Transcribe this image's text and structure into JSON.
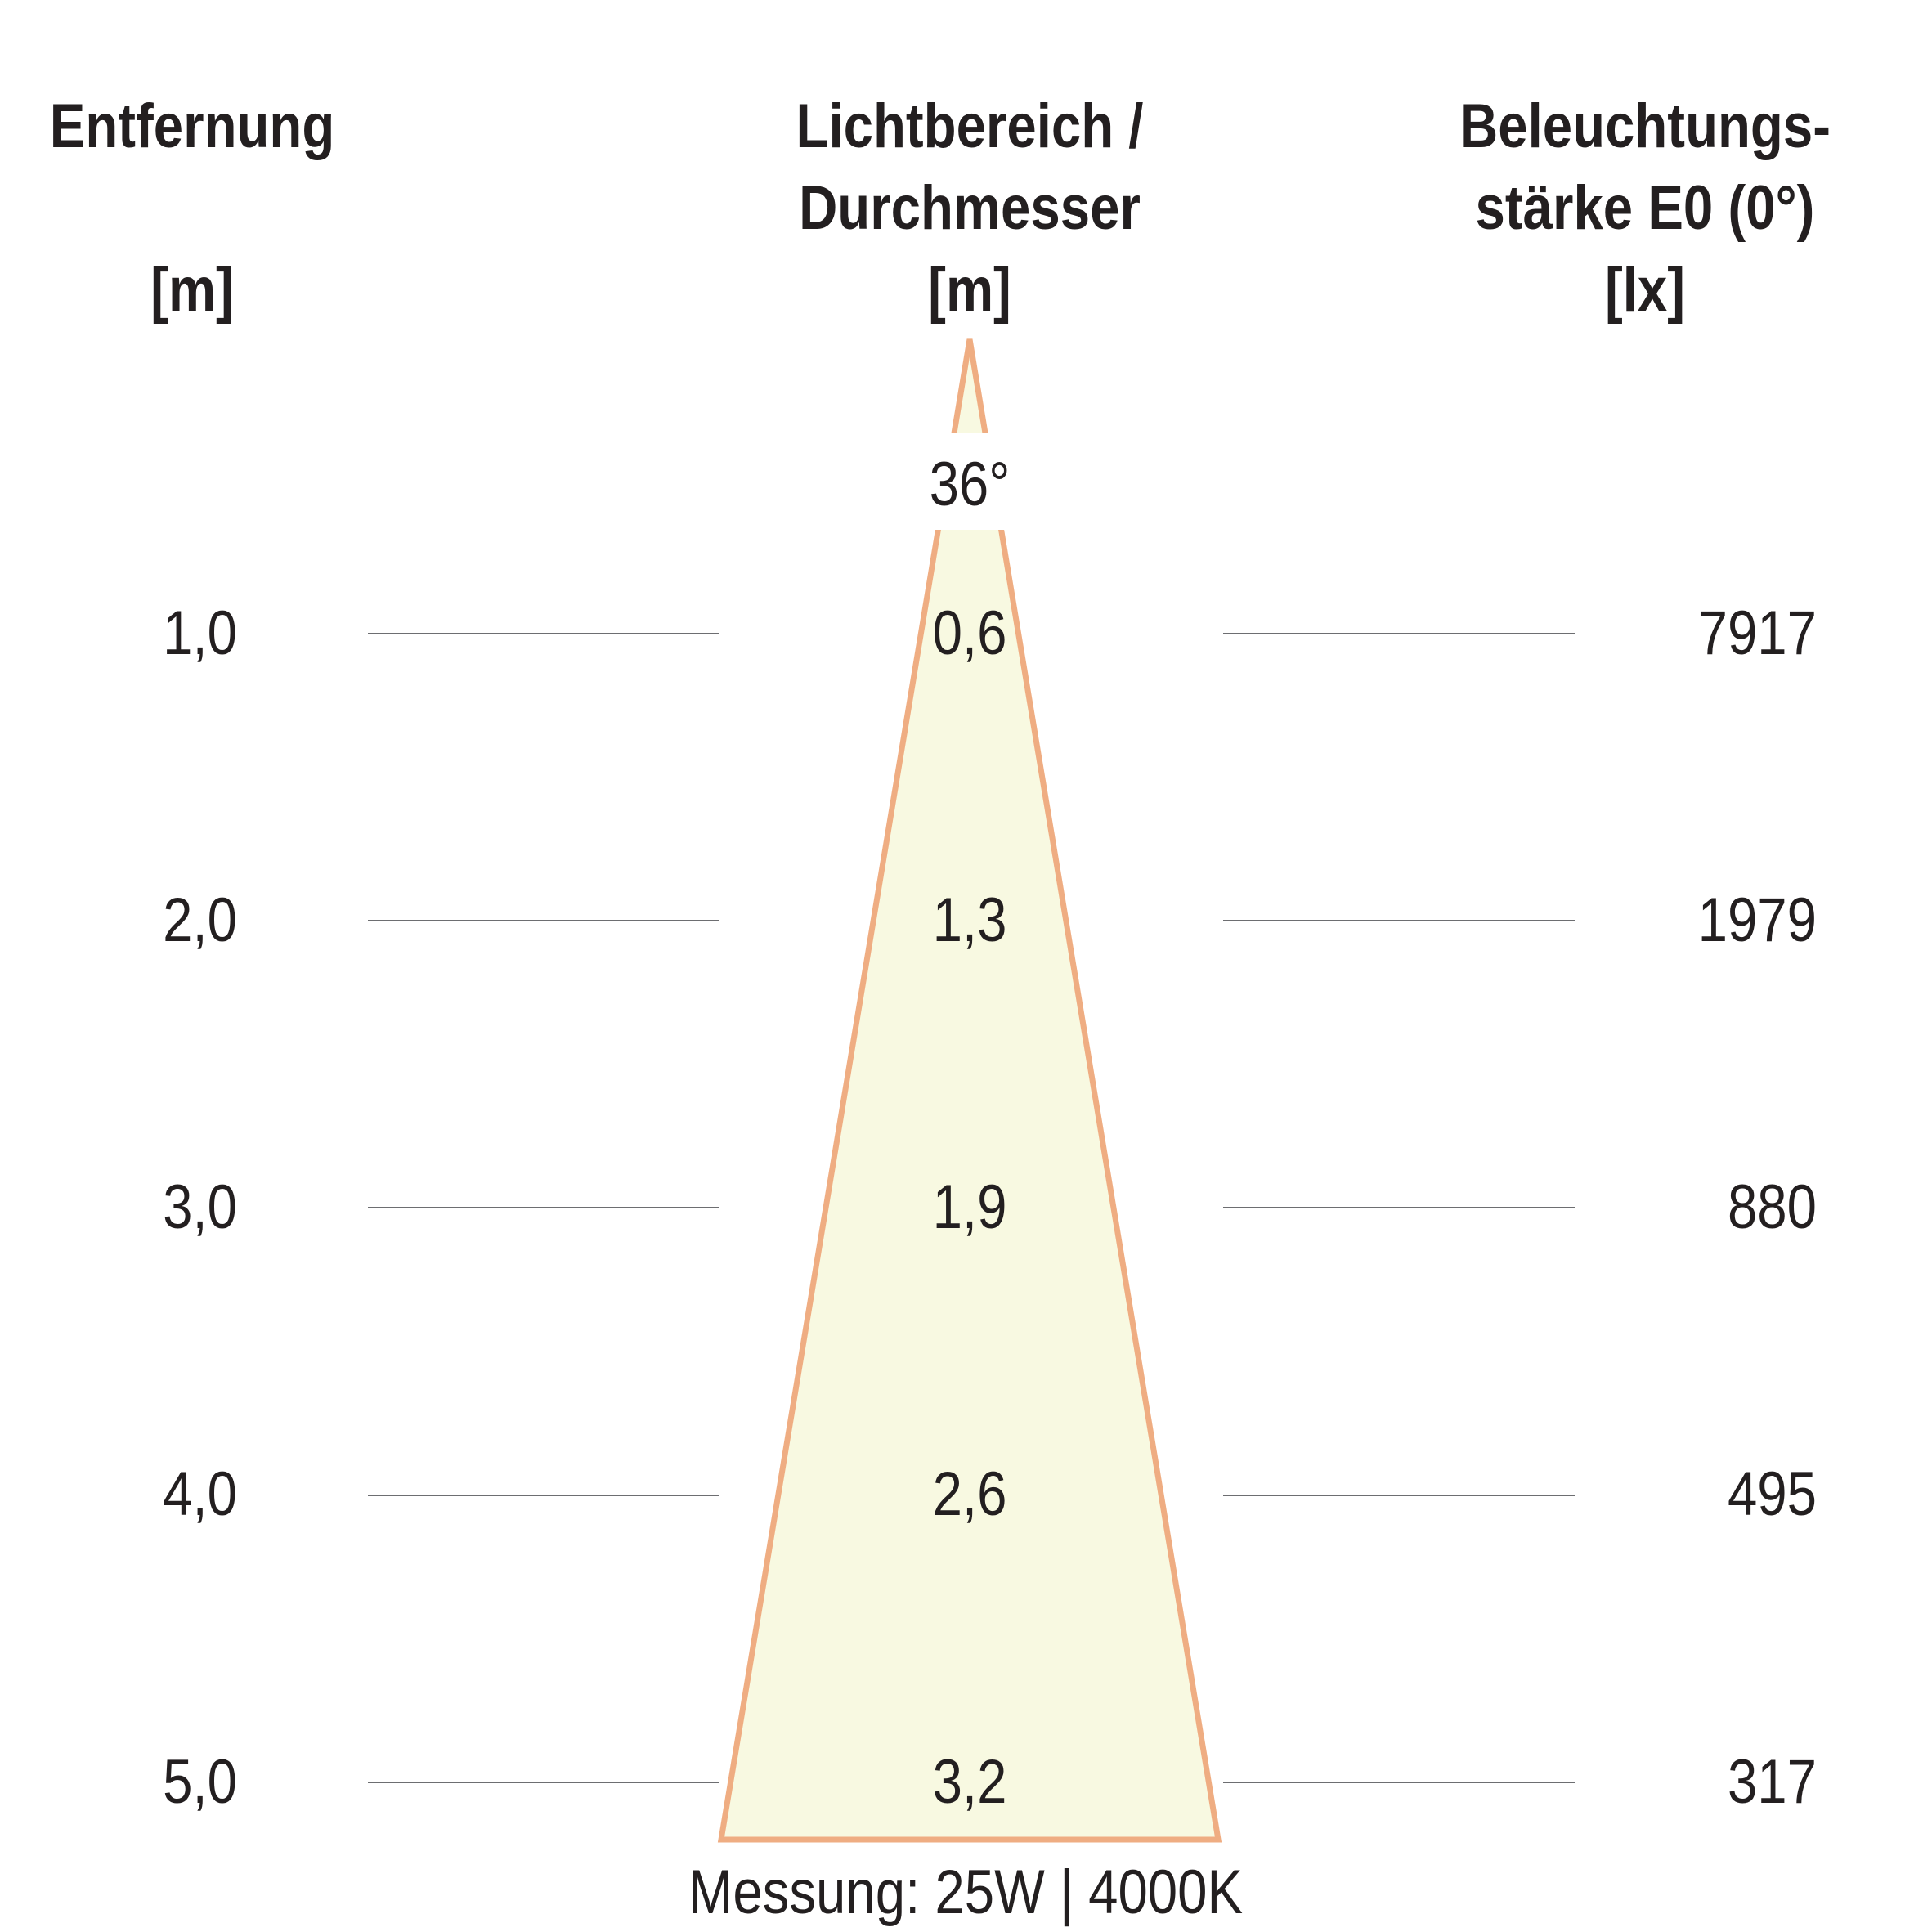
{
  "headers": {
    "distance": [
      "Entfernung",
      "[m]"
    ],
    "diameter": [
      "Lichtbereich /",
      "Durchmesser",
      "[m]"
    ],
    "illuminance": [
      "Beleuchtungs-",
      "stärke E0 (0°)",
      "[lx]"
    ]
  },
  "beam_angle": "36°",
  "rows": [
    {
      "distance": "1,0",
      "diameter": "0,6",
      "illuminance": "7917"
    },
    {
      "distance": "2,0",
      "diameter": "1,3",
      "illuminance": "1979"
    },
    {
      "distance": "3,0",
      "diameter": "1,9",
      "illuminance": "880"
    },
    {
      "distance": "4,0",
      "diameter": "2,6",
      "illuminance": "495"
    },
    {
      "distance": "5,0",
      "diameter": "3,2",
      "illuminance": "317"
    }
  ],
  "caption": "Messung: 25W | 4000K",
  "colors": {
    "cone_fill": "#f8f9e1",
    "cone_stroke": "#efad82",
    "rule": "#6d6e71",
    "text": "#231f20"
  }
}
